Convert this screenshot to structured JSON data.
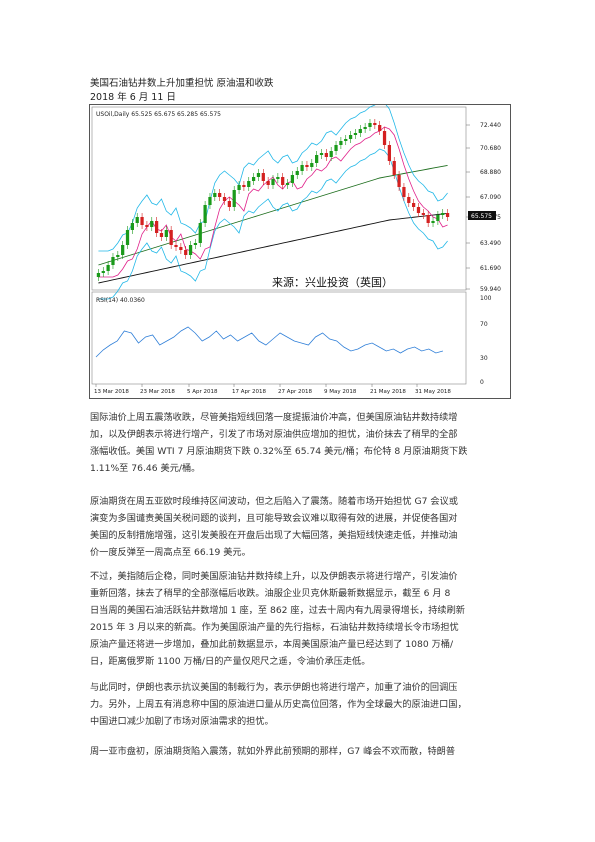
{
  "article": {
    "title": "美国石油钻井数上升加重担忧 原油温和收跌",
    "date": "2018 年 6 月 11 日"
  },
  "chart": {
    "symbol_label": "USOil,Daily  65.525 65.675 65.285 65.575",
    "rsi_label": "RSI(14) 40.0360",
    "watermark": "来源：兴业投资（英国）",
    "price_ticks": [
      "72.440",
      "70.680",
      "68.880",
      "67.090",
      "65.575",
      "63.490",
      "61.690",
      "59.940"
    ],
    "rsi_ticks": [
      "100",
      "70",
      "30",
      "0"
    ],
    "date_ticks": [
      "13 Mar 2018",
      "23 Mar 2018",
      "5 Apr 2018",
      "17 Apr 2018",
      "27 Apr 2018",
      "9 May 2018",
      "21 May 2018",
      "31 May 2018"
    ],
    "current_price": "65.575",
    "colors": {
      "bull": "#1a9a1a",
      "bear": "#d42020",
      "upper_band": "#22b8e8",
      "ma_short": "#e0208a",
      "ma_mid": "#1e6e1e",
      "ma_long": "#111111",
      "rsi_line": "#2f7fd8"
    }
  },
  "paragraphs": [
    [
      "国际油价上周五震荡收跌，尽管美指短线回落一度提振油价冲高，但美国原油钻井数持续增",
      "加，以及伊朗表示将进行增产，引发了市场对原油供应增加的担忧，油价抹去了稍早的全部",
      "涨幅收低。美国 WTI 7 月原油期货下跌 0.32%至 65.74 美元/桶；布伦特 8 月原油期货下跌",
      "1.11%至 76.46 美元/桶。"
    ],
    [
      "原油期货在周五亚欧时段维持区间波动，但之后陷入了震荡。随着市场开始担忧 G7 会议或",
      "演变为多国谴责美国关税问题的谈判，且可能导致会议难以取得有效的进展，并促使各国对",
      "美国的反制措施增强，这引发美股在开盘后出现了大幅回落，美指短线快速走低，并推动油",
      "价一度反弹至一周高点至 66.19 美元。"
    ],
    [
      "不过，美指随后企稳，同时美国原油钻井数持续上升，以及伊朗表示将进行增产，引发油价",
      "重新回落，抹去了稍早的全部涨幅后收跌。油服企业贝克休斯最新数据显示，截至 6 月 8",
      "日当周的美国石油活跃钻井数增加 1 座，至 862 座，过去十周内有九周录得增长，持续刷新",
      "2015 年 3 月以来的新高。作为美国原油产量的先行指标，石油钻井数持续增长令市场担忧",
      "原油产量还将进一步增加，叠加此前数据显示，本周美国原油产量已经达到了 1080 万桶/",
      "日，距离俄罗斯 1100 万桶/日的产量仅咫尺之遥，令油价承压走低。"
    ],
    [
      "与此同时，伊朗也表示抗议美国的制裁行为，表示伊朗也将进行增产，加重了油价的回调压",
      "力。另外，上周五有消息称中国的原油进口量从历史高位回落，作为全球最大的原油进口国，",
      "中国进口减少加剧了市场对原油需求的担忧。"
    ],
    [
      "周一亚市盘初，原油期货陷入震荡，就如外界此前预期的那样，G7 峰会不欢而散，特朗普"
    ]
  ]
}
